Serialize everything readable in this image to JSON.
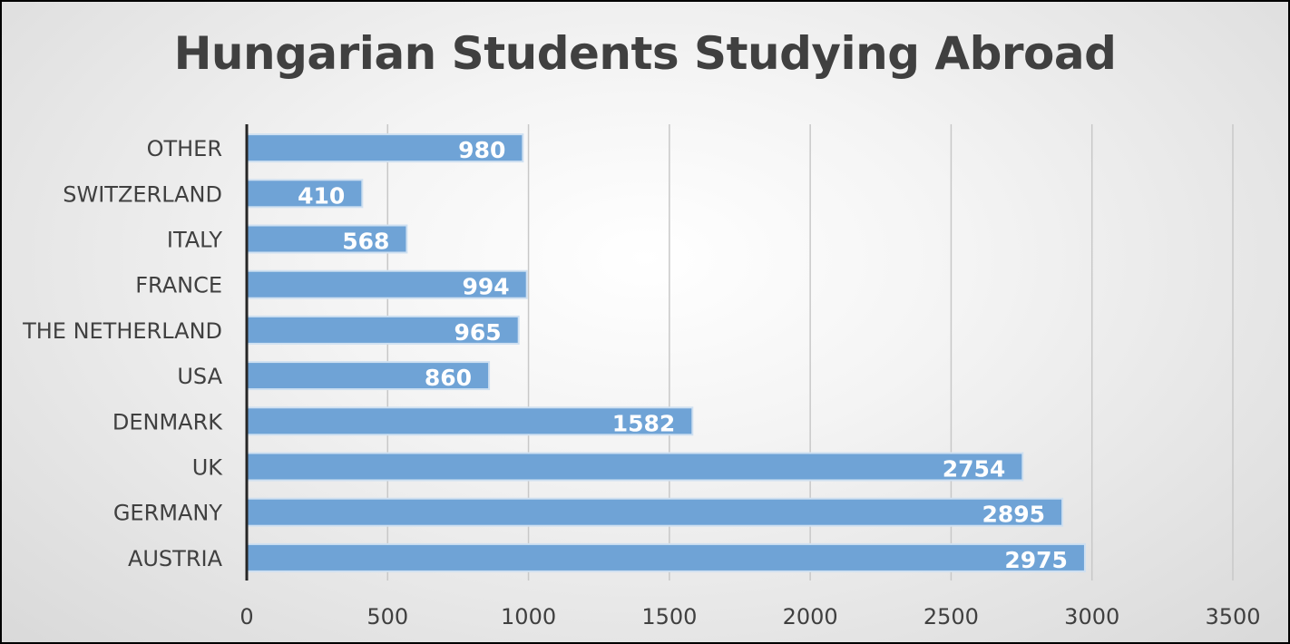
{
  "chart_data": {
    "type": "bar",
    "orientation": "horizontal",
    "title": "Hungarian Students Studying Abroad",
    "categories": [
      "AUSTRIA",
      "GERMANY",
      "UK",
      "DENMARK",
      "USA",
      "THE NETHERLAND",
      "FRANCE",
      "ITALY",
      "SWITZERLAND",
      "OTHER"
    ],
    "values": [
      2975,
      2895,
      2754,
      1582,
      860,
      965,
      994,
      568,
      410,
      980
    ],
    "xlim": [
      0,
      3500
    ],
    "xticks": [
      "0",
      "500",
      "1000",
      "1500",
      "2000",
      "2500",
      "3000",
      "3500"
    ],
    "xtick_values": [
      0,
      500,
      1000,
      1500,
      2000,
      2500,
      3000,
      3500
    ],
    "xlabel": "",
    "ylabel": "",
    "grid": true,
    "legend": "none",
    "bar_color": "#6fa3d6",
    "bar_edge_color": "#cfe0f1",
    "data_label_color": "#ffffff"
  }
}
